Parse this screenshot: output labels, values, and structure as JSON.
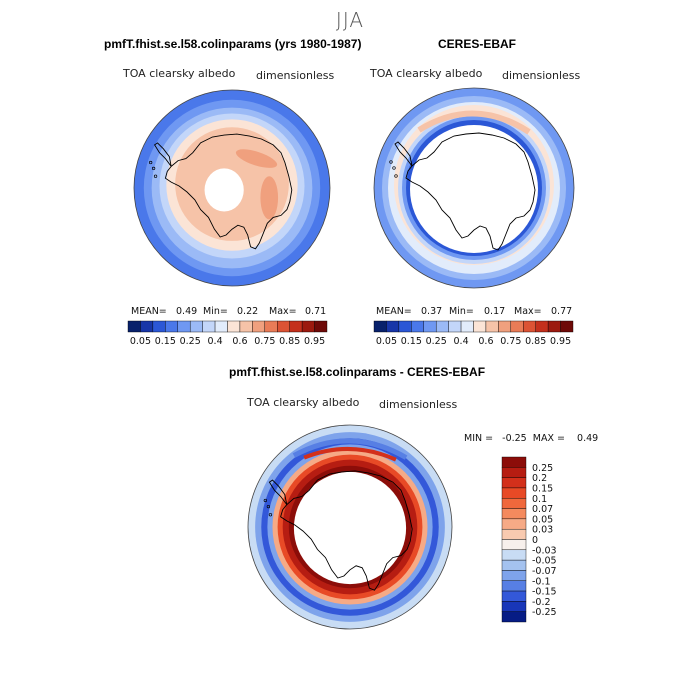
{
  "season": "JJA",
  "panels": [
    {
      "title": "pmfT.fhist.se.l58.colinparams (yrs 1980-1987)",
      "var": "TOA clearsky albedo",
      "units": "dimensionless",
      "stats": {
        "mean_label": "MEAN=",
        "mean": "0.49",
        "min_label": "Min=",
        "min": "0.22",
        "max_label": "Max=",
        "max": "0.71"
      }
    },
    {
      "title": "CERES-EBAF",
      "var": "TOA clearsky albedo",
      "units": "dimensionless",
      "stats": {
        "mean_label": "MEAN=",
        "mean": "0.37",
        "min_label": "Min=",
        "min": "0.17",
        "max_label": "Max=",
        "max": "0.77"
      }
    },
    {
      "title": "pmfT.fhist.se.l58.colinparams - CERES-EBAF",
      "var": "TOA clearsky albedo",
      "units": "dimensionless",
      "stats": {
        "text": "MIN =   -0.25  MAX =    0.49"
      }
    }
  ],
  "chart_data": [
    {
      "type": "heatmap",
      "projection": "south-polar-stereographic",
      "title": "pmfT.fhist.se.l58.colinparams (yrs 1980-1987)",
      "variable": "TOA clearsky albedo",
      "units": "dimensionless",
      "mean": 0.49,
      "min": 0.22,
      "max": 0.71,
      "colorbar_ticks": [
        "0.05",
        "0.15",
        "0.25",
        "0.4",
        "0.6",
        "0.75",
        "0.85",
        "0.95"
      ],
      "colorbar_colors": [
        "#08216b",
        "#1836a8",
        "#2b57d6",
        "#4a78ea",
        "#6f98f2",
        "#9bbaf6",
        "#c3d6f9",
        "#e2ecfb",
        "#fbe4d6",
        "#f6c3a8",
        "#f0a07e",
        "#e97c57",
        "#dc5334",
        "#c4301c",
        "#9c1a0f",
        "#6e0a08"
      ]
    },
    {
      "type": "heatmap",
      "projection": "south-polar-stereographic",
      "title": "CERES-EBAF",
      "variable": "TOA clearsky albedo",
      "units": "dimensionless",
      "mean": 0.37,
      "min": 0.17,
      "max": 0.77,
      "colorbar_ticks": [
        "0.05",
        "0.15",
        "0.25",
        "0.4",
        "0.6",
        "0.75",
        "0.85",
        "0.95"
      ]
    },
    {
      "type": "heatmap",
      "projection": "south-polar-stereographic",
      "title": "pmfT.fhist.se.l58.colinparams - CERES-EBAF",
      "variable": "TOA clearsky albedo",
      "units": "dimensionless",
      "min": -0.25,
      "max": 0.49,
      "colorbar_ticks": [
        "0.25",
        "0.2",
        "0.15",
        "0.1",
        "0.07",
        "0.05",
        "0.03",
        "0",
        "-0.03",
        "-0.05",
        "-0.07",
        "-0.1",
        "-0.15",
        "-0.2",
        "-0.25"
      ],
      "colorbar_colors": [
        "#8c0d09",
        "#b61d12",
        "#d3301b",
        "#e84a26",
        "#f0683c",
        "#f48a5e",
        "#f6aa86",
        "#f8cab0",
        "#f7f0ec",
        "#c8dcf4",
        "#a4c2ef",
        "#7ea3eb",
        "#577fe4",
        "#3358d9",
        "#1836b8",
        "#061c85"
      ]
    }
  ]
}
